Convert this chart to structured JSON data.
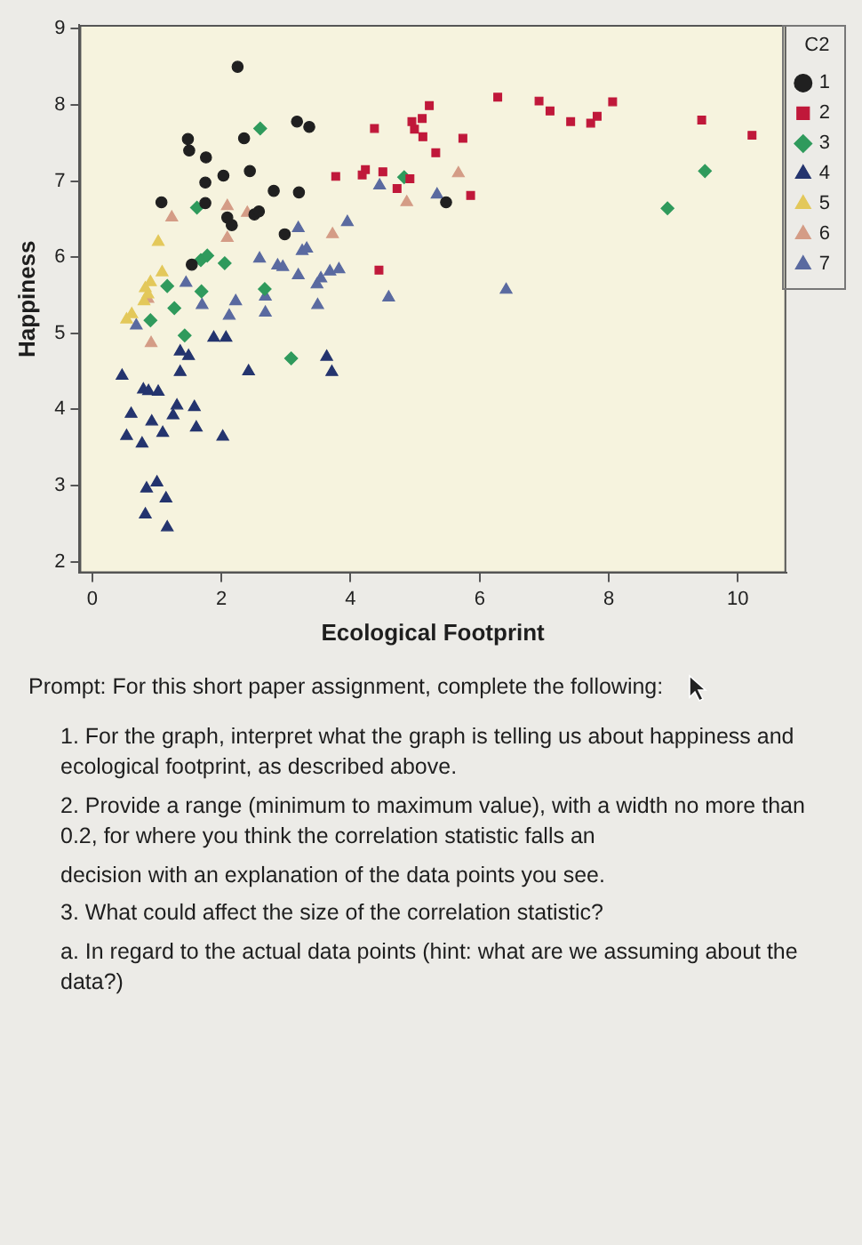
{
  "chart_data": {
    "type": "scatter",
    "xlabel": "Ecological Footprint",
    "ylabel": "Happiness",
    "legend_title": "C2",
    "legend": "top right",
    "xlim": [
      -0.2,
      10.75
    ],
    "xticks": [
      0,
      2,
      4,
      6,
      8,
      10
    ],
    "ylim": [
      1.85,
      9.05
    ],
    "yticks": [
      2,
      3,
      4,
      5,
      6,
      7,
      8,
      9
    ],
    "series": [
      {
        "name": "1",
        "color": "#202020",
        "marker": "circle",
        "x": [
          1.07,
          1.54,
          1.75,
          1.75,
          1.76,
          1.5,
          1.48,
          2.16,
          2.09,
          2.03,
          2.25,
          2.51,
          2.58,
          2.44,
          2.35,
          2.81,
          2.98,
          3.2,
          3.17,
          3.36,
          5.48
        ],
        "values": [
          6.72,
          5.9,
          6.71,
          6.98,
          7.31,
          7.4,
          7.55,
          6.42,
          6.52,
          7.07,
          8.5,
          6.56,
          6.6,
          7.13,
          7.56,
          6.87,
          6.3,
          6.85,
          7.78,
          7.71,
          6.72
        ]
      },
      {
        "name": "2",
        "color": "#c0183a",
        "marker": "square",
        "x": [
          3.77,
          4.18,
          4.23,
          4.44,
          4.5,
          4.37,
          4.72,
          4.92,
          4.99,
          4.95,
          5.12,
          5.11,
          5.22,
          5.32,
          5.74,
          5.86,
          6.28,
          6.92,
          7.09,
          7.41,
          7.72,
          7.82,
          8.06,
          9.44,
          10.22
        ],
        "values": [
          7.06,
          7.08,
          7.15,
          5.83,
          7.12,
          7.69,
          6.9,
          7.03,
          7.68,
          7.78,
          7.58,
          7.82,
          7.99,
          7.37,
          7.56,
          6.81,
          8.1,
          8.05,
          7.92,
          7.78,
          7.76,
          7.85,
          8.04,
          7.8,
          7.6
        ]
      },
      {
        "name": "3",
        "color": "#2f9a5c",
        "marker": "diamond",
        "x": [
          0.9,
          1.27,
          1.16,
          1.43,
          1.69,
          1.68,
          1.78,
          1.62,
          2.05,
          2.6,
          2.67,
          3.08,
          4.83,
          8.91,
          9.49
        ],
        "values": [
          5.17,
          5.33,
          5.62,
          4.97,
          5.55,
          5.96,
          6.02,
          6.65,
          5.92,
          7.69,
          5.58,
          4.67,
          7.05,
          6.64,
          7.13
        ]
      },
      {
        "name": "4",
        "color": "#24346e",
        "marker": "triangle",
        "x": [
          1.16,
          0.82,
          1.14,
          0.84,
          1.0,
          0.53,
          0.6,
          0.77,
          0.92,
          1.09,
          0.46,
          0.79,
          0.87,
          1.02,
          1.25,
          1.31,
          1.61,
          1.58,
          1.36,
          1.36,
          1.49,
          2.02,
          1.88,
          2.07,
          2.42,
          3.71,
          3.63
        ],
        "values": [
          2.45,
          2.62,
          2.83,
          2.96,
          3.04,
          3.65,
          3.94,
          3.55,
          3.84,
          3.69,
          4.44,
          4.26,
          4.24,
          4.23,
          3.92,
          4.05,
          3.76,
          4.03,
          4.49,
          4.76,
          4.7,
          3.64,
          4.94,
          4.94,
          4.5,
          4.49,
          4.69
        ]
      },
      {
        "name": "5",
        "color": "#e3c85a",
        "marker": "triangle",
        "x": [
          0.53,
          0.61,
          0.8,
          0.86,
          0.9,
          1.08,
          1.02,
          0.82
        ],
        "values": [
          5.18,
          5.25,
          5.42,
          5.51,
          5.67,
          5.8,
          6.2,
          5.59
        ]
      },
      {
        "name": "6",
        "color": "#d49c86",
        "marker": "triangle",
        "x": [
          0.91,
          0.86,
          1.23,
          2.09,
          2.09,
          2.4,
          3.72,
          4.87,
          5.67
        ],
        "values": [
          4.87,
          5.45,
          6.52,
          6.25,
          6.67,
          6.58,
          6.3,
          6.72,
          7.1
        ]
      },
      {
        "name": "7",
        "color": "#5a6aa0",
        "marker": "triangle",
        "x": [
          0.68,
          1.45,
          1.7,
          2.12,
          2.22,
          2.68,
          2.68,
          2.59,
          2.87,
          2.95,
          3.19,
          3.25,
          3.32,
          3.19,
          3.49,
          3.48,
          3.54,
          3.68,
          3.82,
          3.95,
          4.59,
          4.45,
          5.34,
          6.41
        ],
        "values": [
          5.1,
          5.66,
          5.37,
          5.23,
          5.42,
          5.27,
          5.48,
          5.98,
          5.89,
          5.87,
          5.76,
          6.08,
          6.11,
          6.38,
          5.37,
          5.64,
          5.72,
          5.81,
          5.84,
          6.46,
          5.47,
          6.94,
          6.82,
          5.57
        ]
      }
    ],
    "annotations": [
      "Prompt: For this short paper assignment, complete the following:",
      "1. For the graph, interpret what the graph is telling us about happiness and ecological footprint, as described above.",
      "2. Provide a range (minimum to maximum value), with a width no more than 0.2, for where you think the correlation statistic falls an",
      "decision with an explanation of the data points you see.",
      "3. What could affect the size of the correlation statistic?",
      "a. In regard to the actual data points (hint: what are we assuming about the data?)"
    ]
  }
}
